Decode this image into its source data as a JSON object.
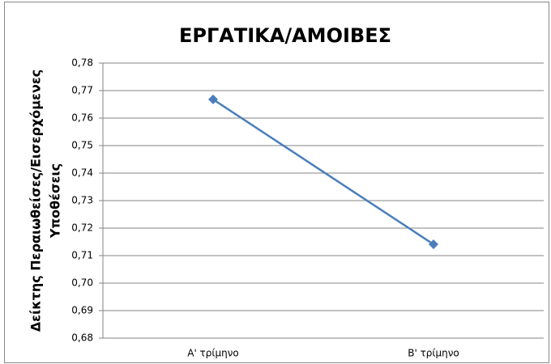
{
  "chart_data": {
    "type": "line",
    "title": "ΕΡΓΑΤΙΚΑ/ΑΜΟΙΒΕΣ",
    "ylabel": [
      "Δείκτης Περαιωθείσες/Εισερχόμενες",
      "Υποθέσεις"
    ],
    "categories": [
      "Α' τρίμηνο",
      "Β' τρίμηνο"
    ],
    "series": [
      {
        "name": "ΕΡΓΑΤΙΚΑ/ΑΜΟΙΒΕΣ",
        "color": "#4a7ebb",
        "values": [
          0.7668,
          0.7141
        ]
      }
    ],
    "ylim": [
      0.68,
      0.78
    ],
    "yticks": [
      {
        "value": 0.68,
        "label": "0,68"
      },
      {
        "value": 0.69,
        "label": "0,69"
      },
      {
        "value": 0.7,
        "label": "0,70"
      },
      {
        "value": 0.71,
        "label": "0,71"
      },
      {
        "value": 0.72,
        "label": "0,72"
      },
      {
        "value": 0.73,
        "label": "0,73"
      },
      {
        "value": 0.74,
        "label": "0,74"
      },
      {
        "value": 0.75,
        "label": "0,75"
      },
      {
        "value": 0.76,
        "label": "0,76"
      },
      {
        "value": 0.77,
        "label": "0,77"
      },
      {
        "value": 0.78,
        "label": "0,78"
      }
    ],
    "grid": true
  }
}
